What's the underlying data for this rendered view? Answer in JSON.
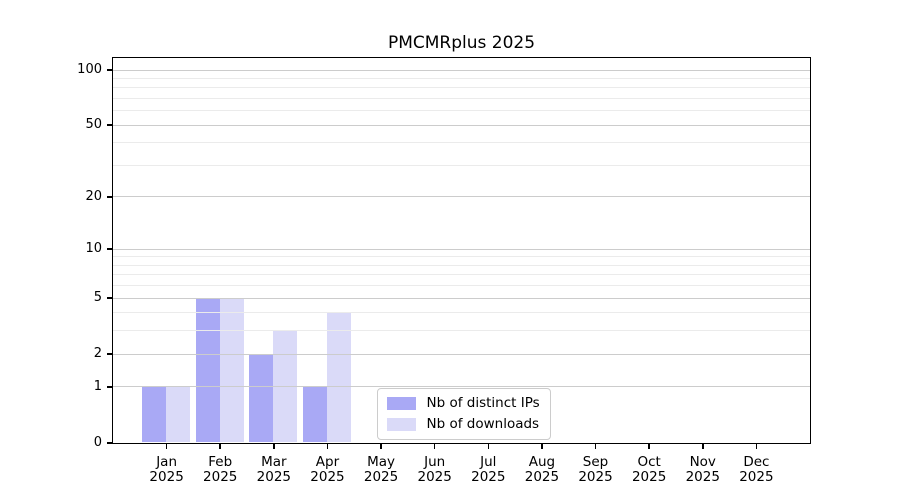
{
  "figure_title": "PMCMRplus 2025",
  "chart_data": {
    "type": "bar",
    "title": "PMCMRplus 2025",
    "categories": [
      "Jan 2025",
      "Feb 2025",
      "Mar 2025",
      "Apr 2025",
      "May 2025",
      "Jun 2025",
      "Jul 2025",
      "Aug 2025",
      "Sep 2025",
      "Oct 2025",
      "Nov 2025",
      "Dec 2025"
    ],
    "x_tick_months": [
      "Jan",
      "Feb",
      "Mar",
      "Apr",
      "May",
      "Jun",
      "Jul",
      "Aug",
      "Sep",
      "Oct",
      "Nov",
      "Dec"
    ],
    "x_tick_year": "2025",
    "series": [
      {
        "name": "Nb of distinct IPs",
        "color": "#a9a9f5",
        "values": [
          1,
          5,
          2,
          1,
          0,
          0,
          0,
          0,
          0,
          0,
          0,
          0
        ]
      },
      {
        "name": "Nb of downloads",
        "color": "#dadaf8",
        "values": [
          1,
          5,
          3,
          4,
          0,
          0,
          0,
          0,
          0,
          0,
          0,
          0
        ]
      }
    ],
    "y_axis": {
      "scale": "log1p",
      "major_ticks": [
        0,
        1,
        2,
        5,
        10,
        20,
        50,
        100
      ],
      "minor_gridlines": [
        3,
        4,
        6,
        7,
        8,
        9,
        30,
        40,
        60,
        70,
        80,
        90
      ],
      "top_value": 100
    },
    "legend_position": "lower center",
    "grid": true
  },
  "colors": {
    "bar_distinct_ips": "#a9a9f5",
    "bar_downloads": "#dadaf8",
    "grid_major": "#cccccc",
    "grid_minor": "#ebebeb",
    "axis": "#000000",
    "legend_border": "#cccccc",
    "background": "#ffffff"
  }
}
